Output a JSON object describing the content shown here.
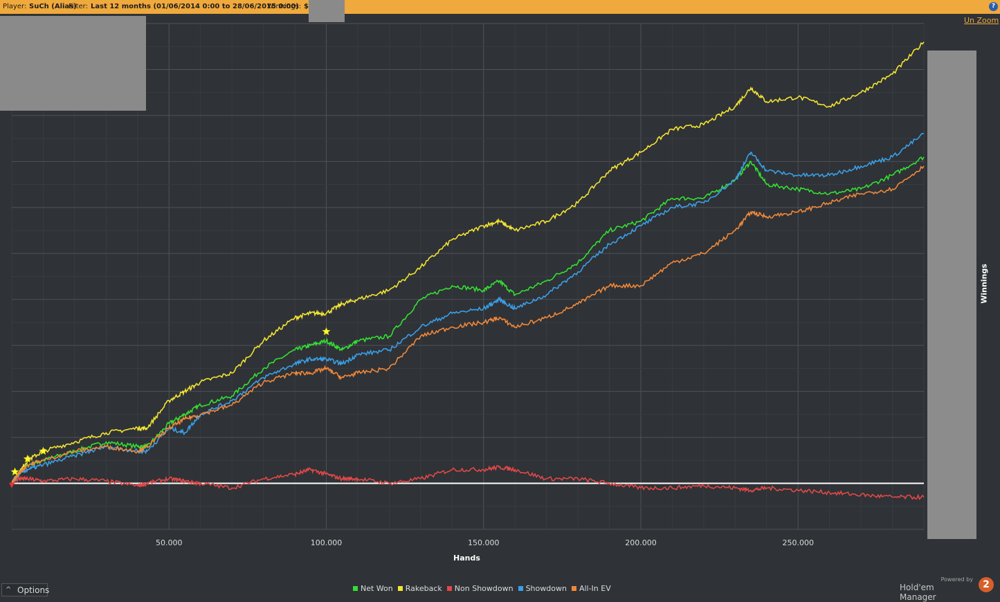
{
  "header": {
    "player_label": "Player:",
    "player_value": "SuCh (Alias)",
    "filter_label": "Filter:",
    "filter_value": "Last 12 months (01/06/2014 0:00 to 28/06/2015 0:00)",
    "winnings_label": "Winnings:",
    "winnings_value": "$",
    "help_glyph": "?"
  },
  "toolbar": {
    "unzoom_label": "Un Zoom"
  },
  "options": {
    "label": "Options",
    "chevron": "^"
  },
  "brand": {
    "powered_by": "Powered by",
    "name": "Hold'em Manager",
    "logo_text": "2"
  },
  "colors": {
    "background": "#2f3236",
    "accent": "#f0a93c",
    "net_won": "#33e033",
    "rakeback": "#f2e433",
    "non_showdown": "#e24848",
    "showdown": "#3a9fe8",
    "allin_ev": "#f0883a"
  },
  "chart_data": {
    "type": "line",
    "xlabel": "Hands",
    "ylabel": "Winnings",
    "xlim": [
      0,
      290000
    ],
    "ylim": [
      -10,
      100
    ],
    "x_ticks": [
      50000,
      100000,
      150000,
      200000,
      250000
    ],
    "x_tick_labels": [
      "50.000",
      "100.000",
      "150.000",
      "200.000",
      "250.000"
    ],
    "grid": true,
    "legend_position": "bottom",
    "x": [
      0,
      2000,
      5000,
      10000,
      20000,
      30000,
      40000,
      43000,
      50000,
      55000,
      60000,
      70000,
      80000,
      90000,
      95000,
      100000,
      105000,
      110000,
      120000,
      130000,
      140000,
      150000,
      155000,
      160000,
      170000,
      180000,
      190000,
      200000,
      210000,
      220000,
      230000,
      235000,
      240000,
      250000,
      260000,
      270000,
      280000,
      290000
    ],
    "series": [
      {
        "name": "Net Won",
        "color": "#33e033",
        "values": [
          0,
          2,
          4,
          5,
          7,
          9,
          8,
          8,
          13,
          15,
          17,
          19,
          25,
          29,
          30,
          31,
          29,
          31,
          32,
          40,
          43,
          42,
          44,
          41,
          44,
          48,
          55,
          57,
          62,
          62,
          66,
          70,
          65,
          64,
          63,
          64,
          67,
          71
        ]
      },
      {
        "name": "Rakeback",
        "color": "#f2e433",
        "values": [
          0,
          2,
          5,
          7,
          9,
          11,
          12,
          12,
          18,
          20,
          22,
          24,
          31,
          36,
          37,
          37,
          39,
          40,
          42,
          47,
          53,
          56,
          57,
          55,
          57,
          61,
          68,
          72,
          77,
          78,
          82,
          86,
          83,
          84,
          82,
          85,
          89,
          96
        ]
      },
      {
        "name": "Non Showdown",
        "color": "#e24848",
        "values": [
          0,
          1,
          1,
          0.5,
          1,
          0.5,
          -0.5,
          0,
          1,
          0.5,
          0,
          -1,
          1,
          2,
          3,
          2,
          1,
          1,
          0,
          1,
          3,
          3,
          3.5,
          3,
          1,
          1,
          0,
          -1,
          -1,
          -0.5,
          -1,
          -1.5,
          -1,
          -1.5,
          -2,
          -2.5,
          -3,
          -3
        ]
      },
      {
        "name": "Showdown",
        "color": "#3a9fe8",
        "values": [
          0,
          2,
          3,
          4,
          6,
          8,
          7,
          7,
          12,
          11,
          15,
          18,
          23,
          26,
          27,
          27,
          26,
          28,
          29,
          34,
          37,
          38,
          40,
          38,
          41,
          46,
          52,
          56,
          60,
          61,
          66,
          72,
          68,
          67,
          67,
          69,
          71,
          76
        ]
      },
      {
        "name": "All-In EV",
        "color": "#f0883a",
        "values": [
          0,
          2,
          4,
          5,
          7,
          8,
          7,
          8,
          12,
          14,
          15,
          17,
          22,
          24,
          24,
          25,
          23,
          24,
          25,
          32,
          34,
          35,
          36,
          34,
          36,
          39,
          43,
          43,
          48,
          50,
          55,
          59,
          58,
          59,
          61,
          63,
          64,
          69
        ]
      }
    ],
    "hline": 0
  }
}
